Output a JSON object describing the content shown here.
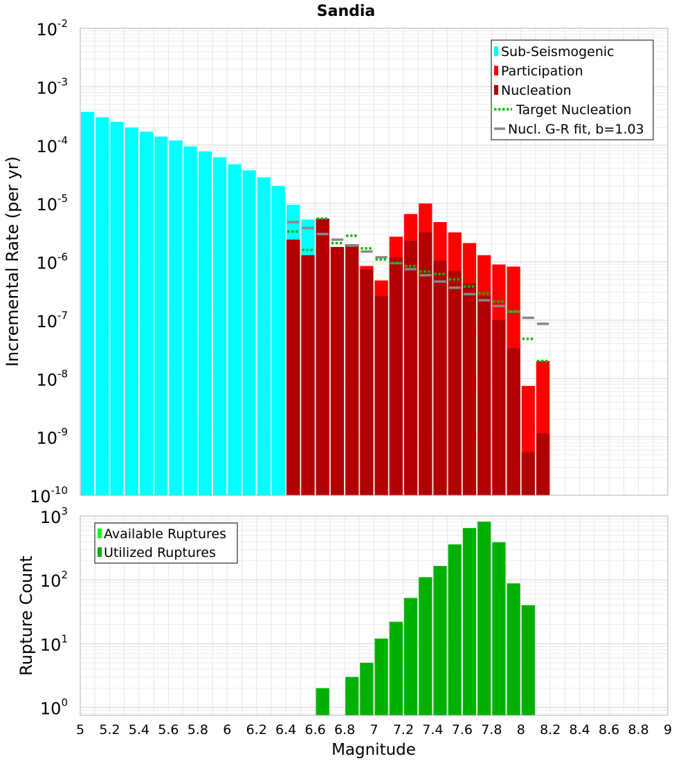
{
  "chart_data": [
    {
      "type": "bar",
      "title": "Sandia",
      "xlabel": "",
      "ylabel": "Incremental Rate (per yr)",
      "yscale": "log",
      "ylim": [
        1e-10,
        0.01
      ],
      "xlim": [
        5,
        9
      ],
      "y_ticks": [
        {
          "base": "10",
          "exp": "-10",
          "value": 1e-10
        },
        {
          "base": "10",
          "exp": "-9",
          "value": 1e-09
        },
        {
          "base": "10",
          "exp": "-8",
          "value": 1e-08
        },
        {
          "base": "10",
          "exp": "-7",
          "value": 1e-07
        },
        {
          "base": "10",
          "exp": "-6",
          "value": 1e-06
        },
        {
          "base": "10",
          "exp": "-5",
          "value": 1e-05
        },
        {
          "base": "10",
          "exp": "-4",
          "value": 0.0001
        },
        {
          "base": "10",
          "exp": "-3",
          "value": 0.001
        },
        {
          "base": "10",
          "exp": "-2",
          "value": 0.01
        }
      ],
      "legend": {
        "placement": "top-right",
        "items": [
          {
            "label": "Sub-Seismogenic",
            "color": "#00ffff",
            "marker": "box"
          },
          {
            "label": "Participation",
            "color": "#ff0000",
            "marker": "box"
          },
          {
            "label": "Nucleation",
            "color": "#b20000",
            "marker": "box"
          },
          {
            "label": "Target Nucleation",
            "color": "#00bb00",
            "marker": "dots"
          },
          {
            "label": "Nucl. G-R fit, b=1.03",
            "color": "#888888",
            "marker": "line"
          }
        ]
      },
      "grid": true,
      "bin_width": 0.1,
      "series": [
        {
          "name": "Sub-Seismogenic",
          "color": "#00ffff",
          "x": [
            5.05,
            5.15,
            5.25,
            5.35,
            5.45,
            5.55,
            5.65,
            5.75,
            5.85,
            5.95,
            6.05,
            6.15,
            6.25,
            6.35,
            6.45,
            6.55
          ],
          "y": [
            0.00037,
            0.0003,
            0.00025,
            0.0002,
            0.00017,
            0.00014,
            0.00012,
            9.5e-05,
            7.8e-05,
            6.2e-05,
            4.7e-05,
            3.7e-05,
            2.8e-05,
            2e-05,
            9.5e-06,
            5.3e-06
          ]
        },
        {
          "name": "Participation",
          "color": "#ff0000",
          "x": [
            6.45,
            6.55,
            6.65,
            6.75,
            6.85,
            6.95,
            7.05,
            7.15,
            7.25,
            7.35,
            7.45,
            7.55,
            7.65,
            7.75,
            7.85,
            7.95,
            8.05,
            8.15
          ],
          "y": [
            2.4e-06,
            1.3e-06,
            5.5e-06,
            1.8e-06,
            8.5e-07,
            8.5e-07,
            4.8e-07,
            2.7e-06,
            6.6e-06,
            1e-05,
            4.8e-06,
            3.2e-06,
            2.1e-06,
            1.3e-06,
            9e-07,
            8.3e-07,
            7.5e-09,
            2e-08
          ]
        },
        {
          "name": "Nucleation",
          "color": "#b20000",
          "x": [
            6.45,
            6.55,
            6.65,
            6.75,
            6.85,
            6.95,
            7.05,
            7.15,
            7.25,
            7.35,
            7.45,
            7.55,
            7.65,
            7.75,
            7.85,
            7.95,
            8.05,
            8.15
          ],
          "y": [
            2.4e-06,
            1.3e-06,
            5.5e-06,
            1.8e-06,
            2e-06,
            7.5e-07,
            2.6e-07,
            1.2e-06,
            2.3e-06,
            3.2e-06,
            1.05e-06,
            7e-07,
            4.3e-07,
            2.6e-07,
            1e-07,
            3.3e-08,
            5.5e-10,
            1.15e-09
          ]
        },
        {
          "name": "Target Nucleation",
          "color": "#00bb00",
          "x": [
            6.45,
            6.55,
            6.65,
            6.75,
            6.85,
            6.95,
            7.05,
            7.15,
            7.25,
            7.35,
            7.45,
            7.55,
            7.65,
            7.75,
            7.85,
            7.95,
            8.05,
            8.15
          ],
          "y": [
            3.3e-06,
            1.6e-06,
            5.5e-06,
            2.1e-06,
            2.8e-06,
            1.7e-06,
            1.1e-06,
            9.5e-07,
            8.5e-07,
            6.8e-07,
            6.2e-07,
            5e-07,
            3.8e-07,
            2.9e-07,
            2.1e-07,
            1.4e-07,
            4.8e-08,
            2e-08
          ]
        },
        {
          "name": "Nucl. G-R fit, b=1.03",
          "color": "#888888",
          "x": [
            6.45,
            6.55,
            6.65,
            6.75,
            6.85,
            6.95,
            7.05,
            7.15,
            7.25,
            7.35,
            7.45,
            7.55,
            7.65,
            7.75,
            7.85,
            7.95,
            8.05,
            8.15
          ],
          "y": [
            4.8e-06,
            3.8e-06,
            3e-06,
            2.4e-06,
            1.9e-06,
            1.5e-06,
            1.2e-06,
            9.5e-07,
            7.5e-07,
            5.9e-07,
            4.6e-07,
            3.6e-07,
            2.8e-07,
            2.2e-07,
            1.75e-07,
            1.4e-07,
            1.1e-07,
            8.7e-08
          ]
        }
      ]
    },
    {
      "type": "bar",
      "title": "",
      "xlabel": "Magnitude",
      "ylabel": "Rupture Count",
      "yscale": "log",
      "ylim": [
        0.75,
        1000
      ],
      "xlim": [
        5,
        9
      ],
      "y_ticks": [
        {
          "base": "10",
          "exp": "0",
          "value": 1
        },
        {
          "base": "10",
          "exp": "1",
          "value": 10
        },
        {
          "base": "10",
          "exp": "2",
          "value": 100
        },
        {
          "base": "10",
          "exp": "3",
          "value": 1000
        }
      ],
      "x_tick_labels": [
        "5",
        "5.2",
        "5.4",
        "5.6",
        "5.8",
        "6",
        "6.2",
        "6.4",
        "6.6",
        "6.8",
        "7",
        "7.2",
        "7.4",
        "7.6",
        "7.8",
        "8",
        "8.2",
        "8.4",
        "8.6",
        "8.8",
        "9"
      ],
      "legend": {
        "placement": "top-left",
        "items": [
          {
            "label": "Available Ruptures",
            "color": "#00ff00",
            "marker": "box"
          },
          {
            "label": "Utilized Ruptures",
            "color": "#00b000",
            "marker": "box"
          }
        ]
      },
      "grid": true,
      "bin_width": 0.1,
      "series": [
        {
          "name": "Utilized Ruptures",
          "color": "#00b000",
          "x": [
            6.65,
            6.85,
            6.95,
            7.05,
            7.15,
            7.25,
            7.35,
            7.45,
            7.55,
            7.65,
            7.75,
            7.85,
            7.95,
            8.05
          ],
          "y": [
            2,
            3,
            5,
            12,
            22,
            52,
            110,
            165,
            360,
            650,
            820,
            390,
            88,
            40
          ]
        }
      ]
    }
  ]
}
